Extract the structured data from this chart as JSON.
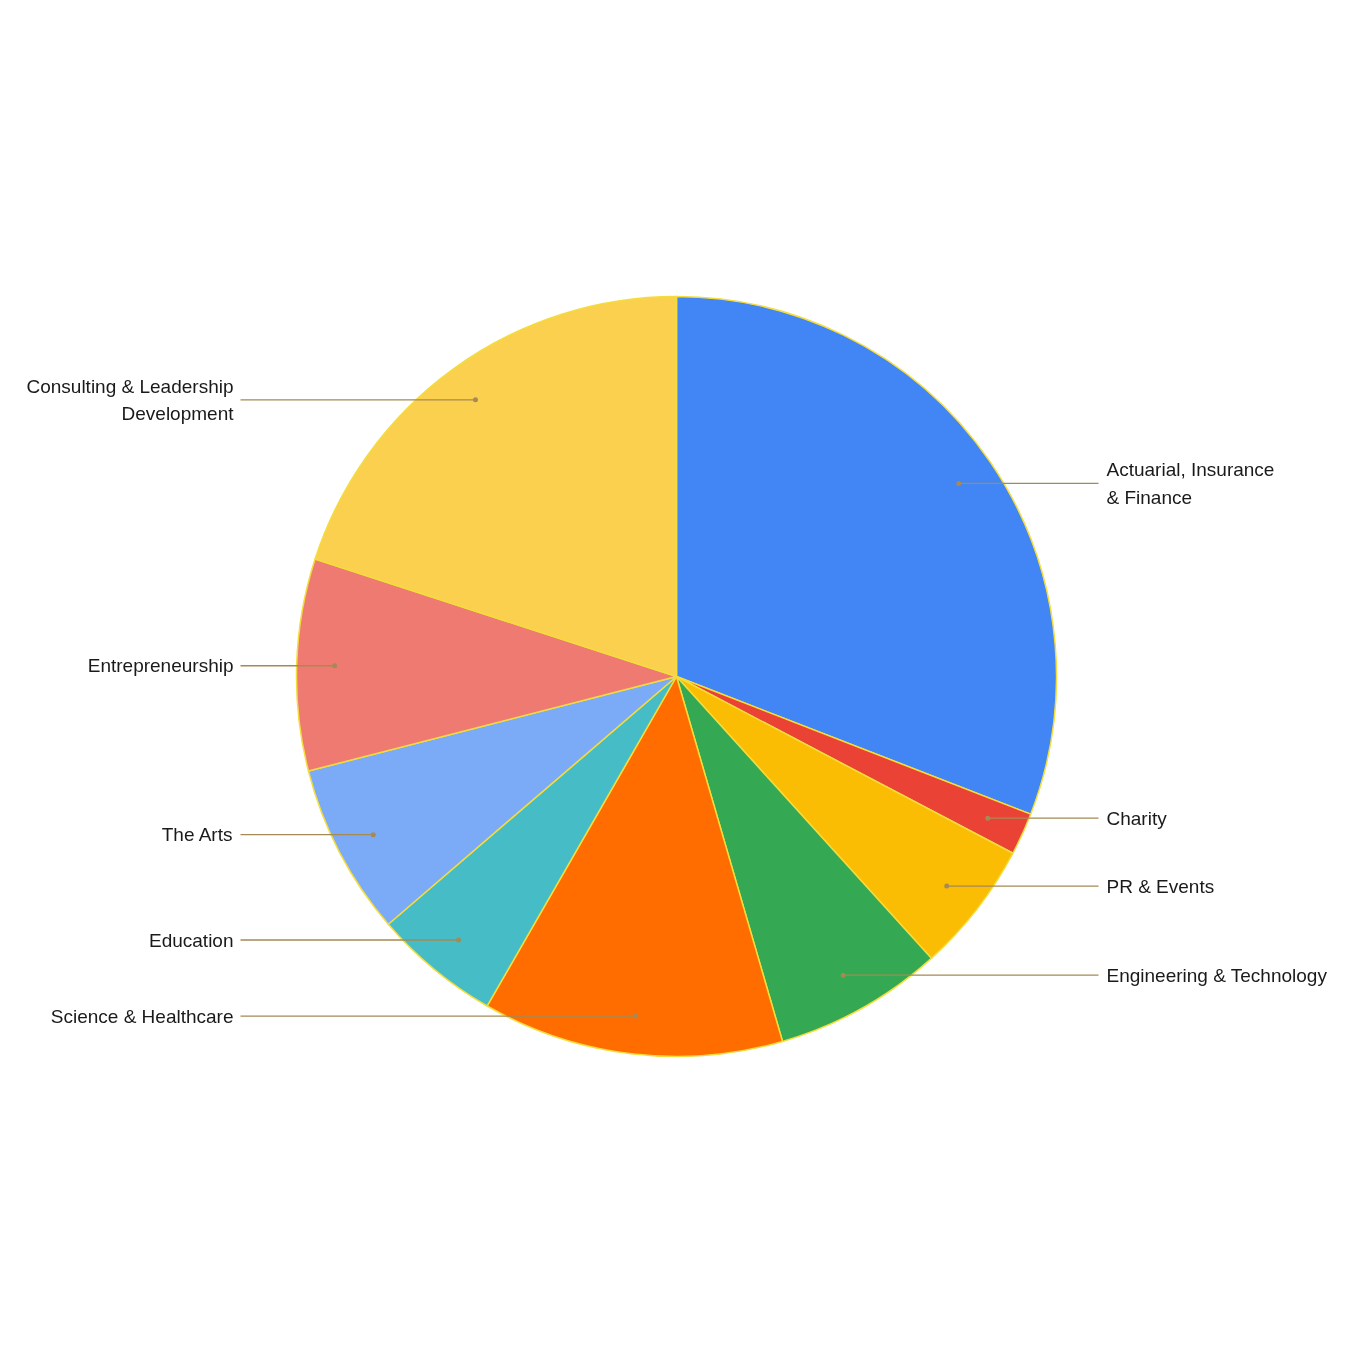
{
  "chart_data": {
    "type": "pie",
    "categories": [
      "Actuarial, Insurance & Finance",
      "Charity",
      "PR & Events",
      "Engineering & Technology",
      "Science & Healthcare",
      "Education",
      "The Arts",
      "Entrepreneurship",
      "Consulting & Leadership Development"
    ],
    "values": [
      30.9,
      1.8,
      5.6,
      7.2,
      12.8,
      5.4,
      7.3,
      9.0,
      20.0
    ],
    "colors": [
      "#4285f4",
      "#ea4335",
      "#fbbc04",
      "#34a853",
      "#ff6d01",
      "#46bdc6",
      "#7baaf7",
      "#ef7a72",
      "#fbd04f"
    ]
  }
}
